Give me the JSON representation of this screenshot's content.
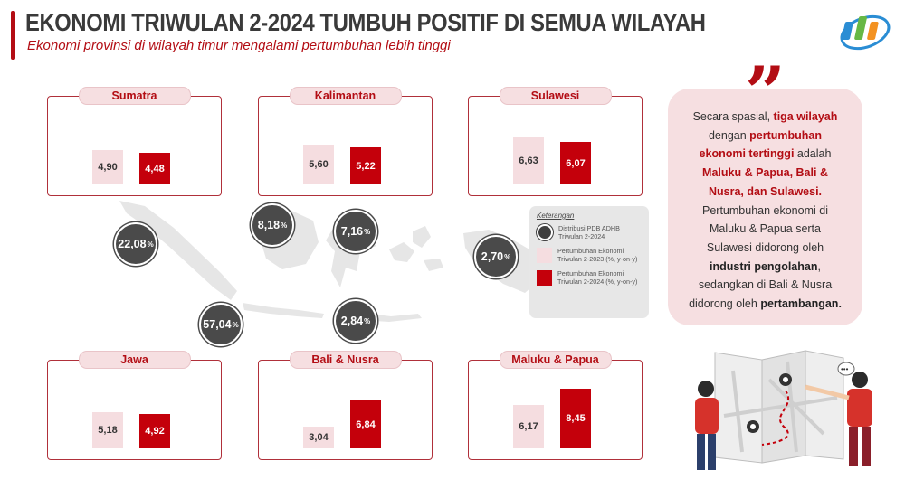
{
  "header": {
    "title": "EKONOMI TRIWULAN 2-2024 TUMBUH POSITIF DI SEMUA WILAYAH",
    "subtitle": "Ekonomi provinsi di wilayah timur mengalami pertumbuhan lebih tinggi"
  },
  "colors": {
    "accent": "#b30d14",
    "prev_bar": "#f5dde0",
    "curr_bar": "#c4000b",
    "bubble": "#4a4a4a"
  },
  "legend": {
    "title": "Keterangan",
    "items": [
      {
        "text1": "Distribusi PDB ADHB",
        "text2": "Triwulan 2-2024"
      },
      {
        "text1": "Pertumbuhan Ekonomi",
        "text2": "Triwulan 2-2023 (%, y-on-y)"
      },
      {
        "text1": "Pertumbuhan Ekonomi",
        "text2": "Triwulan 2-2024 (%, y-on-y)"
      }
    ]
  },
  "quote": {
    "mark": "”",
    "l1a": "Secara spasial, ",
    "l1b": "tiga wilayah",
    "l2a": "dengan ",
    "l2b": "pertumbuhan",
    "l3a": "ekonomi tertinggi",
    "l3b": " adalah",
    "l4": "Maluku & Papua, Bali &",
    "l5": "Nusra, dan Sulawesi.",
    "l6": "Pertumbuhan ekonomi di",
    "l7": "Maluku & Papua serta",
    "l8": "Sulawesi didorong oleh",
    "l9a": "industri pengolahan",
    "l9b": ",",
    "l10": "sedangkan di Bali & Nusra",
    "l11a": "didorong oleh ",
    "l11b": "pertambangan."
  },
  "chart_data": {
    "type": "bar",
    "categories": [
      "Sumatra",
      "Kalimantan",
      "Sulawesi",
      "Jawa",
      "Bali & Nusra",
      "Maluku & Papua"
    ],
    "series": [
      {
        "name": "Pertumbuhan Ekonomi Triwulan 2-2023 (%, y-on-y)",
        "values": [
          4.9,
          5.6,
          6.63,
          5.18,
          3.04,
          6.17
        ],
        "labels": [
          "4,90",
          "5,60",
          "6,63",
          "5,18",
          "3,04",
          "6,17"
        ]
      },
      {
        "name": "Pertumbuhan Ekonomi Triwulan 2-2024 (%, y-on-y)",
        "values": [
          4.48,
          5.22,
          6.07,
          4.92,
          6.84,
          8.45
        ],
        "labels": [
          "4,48",
          "5,22",
          "6,07",
          "4,92",
          "6,84",
          "8,45"
        ]
      }
    ],
    "distribution": {
      "name": "Distribusi PDB ADHB Triwulan 2-2024",
      "values": [
        22.08,
        8.18,
        7.16,
        57.04,
        2.84,
        2.7
      ],
      "labels": [
        "22,08",
        "8,18",
        "7,16",
        "57,04",
        "2,84",
        "2,70"
      ],
      "unit": "%"
    },
    "legend_position": "right"
  }
}
